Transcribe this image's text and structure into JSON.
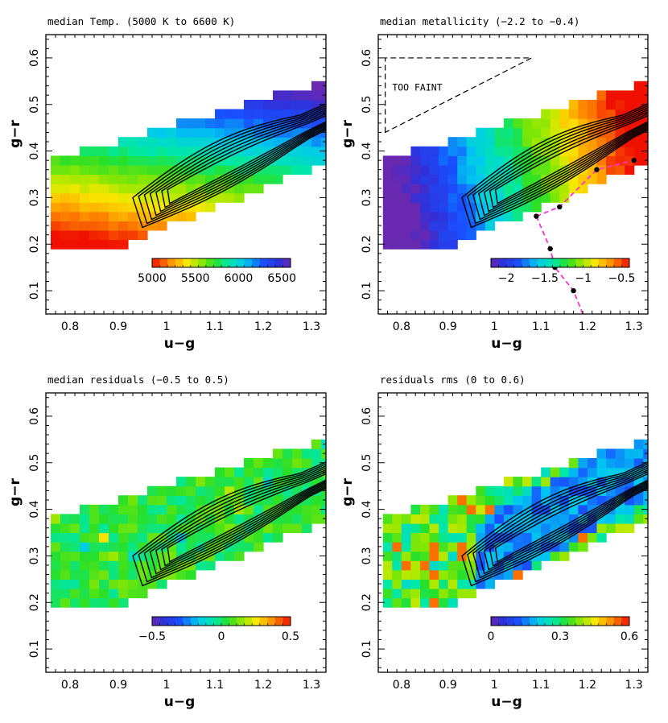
{
  "colors": {
    "contour": "#000000",
    "boundary": "#ff33cc",
    "frame": "#000000"
  },
  "chart_data": [
    {
      "id": "temp",
      "type": "heatmap",
      "title": "median Temp. (5000 K to 6600 K)",
      "xlabel": "u−g",
      "ylabel": "g−r",
      "xlim": [
        0.75,
        1.33
      ],
      "ylim": [
        0.05,
        0.65
      ],
      "xticks": [
        "0.8",
        "0.9",
        "1",
        "1.1",
        "1.2",
        "1.3"
      ],
      "yticks": [
        "0.1",
        "0.2",
        "0.3",
        "0.4",
        "0.5",
        "0.6"
      ],
      "colorbar": {
        "min": 5000,
        "max": 6600,
        "reversed": true,
        "labels": [
          "5000",
          "5500",
          "6000",
          "6500"
        ]
      },
      "field": "Teff_model"
    },
    {
      "id": "metal",
      "type": "heatmap",
      "title": "median metallicity (−2.2 to −0.4)",
      "xlabel": "u−g",
      "ylabel": "g−r",
      "xlim": [
        0.75,
        1.33
      ],
      "ylim": [
        0.05,
        0.65
      ],
      "xticks": [
        "0.8",
        "0.9",
        "1",
        "1.1",
        "1.2",
        "1.3"
      ],
      "yticks": [
        "0.1",
        "0.2",
        "0.3",
        "0.4",
        "0.5",
        "0.6"
      ],
      "colorbar": {
        "min": -2.2,
        "max": -0.4,
        "reversed": false,
        "labels": [
          "−2",
          "−1.5",
          "−1",
          "−0.5"
        ]
      },
      "field": "FeH_model",
      "annotation": "TOO FAINT",
      "boundary_points": [
        [
          1.09,
          0.26
        ],
        [
          1.14,
          0.28
        ],
        [
          1.22,
          0.36
        ],
        [
          1.3,
          0.38
        ],
        [
          1.12,
          0.19
        ],
        [
          1.13,
          0.15
        ],
        [
          1.17,
          0.1
        ]
      ]
    },
    {
      "id": "resid",
      "type": "heatmap",
      "title": "median residuals (−0.5 to 0.5)",
      "xlabel": "u−g",
      "ylabel": "g−r",
      "xlim": [
        0.75,
        1.33
      ],
      "ylim": [
        0.05,
        0.65
      ],
      "xticks": [
        "0.8",
        "0.9",
        "1",
        "1.1",
        "1.2",
        "1.3"
      ],
      "yticks": [
        "0.1",
        "0.2",
        "0.3",
        "0.4",
        "0.5",
        "0.6"
      ],
      "colorbar": {
        "min": -0.5,
        "max": 0.5,
        "reversed": false,
        "labels": [
          "−0.5",
          "0",
          "0.5"
        ]
      },
      "field": "residual_model"
    },
    {
      "id": "rms",
      "type": "heatmap",
      "title": "residuals rms (0 to 0.6)",
      "xlabel": "u−g",
      "ylabel": "g−r",
      "xlim": [
        0.75,
        1.33
      ],
      "ylim": [
        0.05,
        0.65
      ],
      "xticks": [
        "0.8",
        "0.9",
        "1",
        "1.1",
        "1.2",
        "1.3"
      ],
      "yticks": [
        "0.1",
        "0.2",
        "0.3",
        "0.4",
        "0.5",
        "0.6"
      ],
      "colorbar": {
        "min": 0,
        "max": 0.6,
        "reversed": false,
        "labels": [
          "0",
          "0.3",
          "0.6"
        ]
      },
      "field": "rms_model"
    }
  ],
  "contours": {
    "levels": 7,
    "ridge": [
      [
        0.97,
        0.265
      ],
      [
        1.0,
        0.3
      ],
      [
        1.1,
        0.37
      ],
      [
        1.2,
        0.43
      ],
      [
        1.28,
        0.47
      ]
    ],
    "tail": [
      [
        0.99,
        0.31
      ],
      [
        1.02,
        0.32
      ]
    ]
  },
  "grid_cell": {
    "du": 0.02,
    "dg": 0.02
  }
}
